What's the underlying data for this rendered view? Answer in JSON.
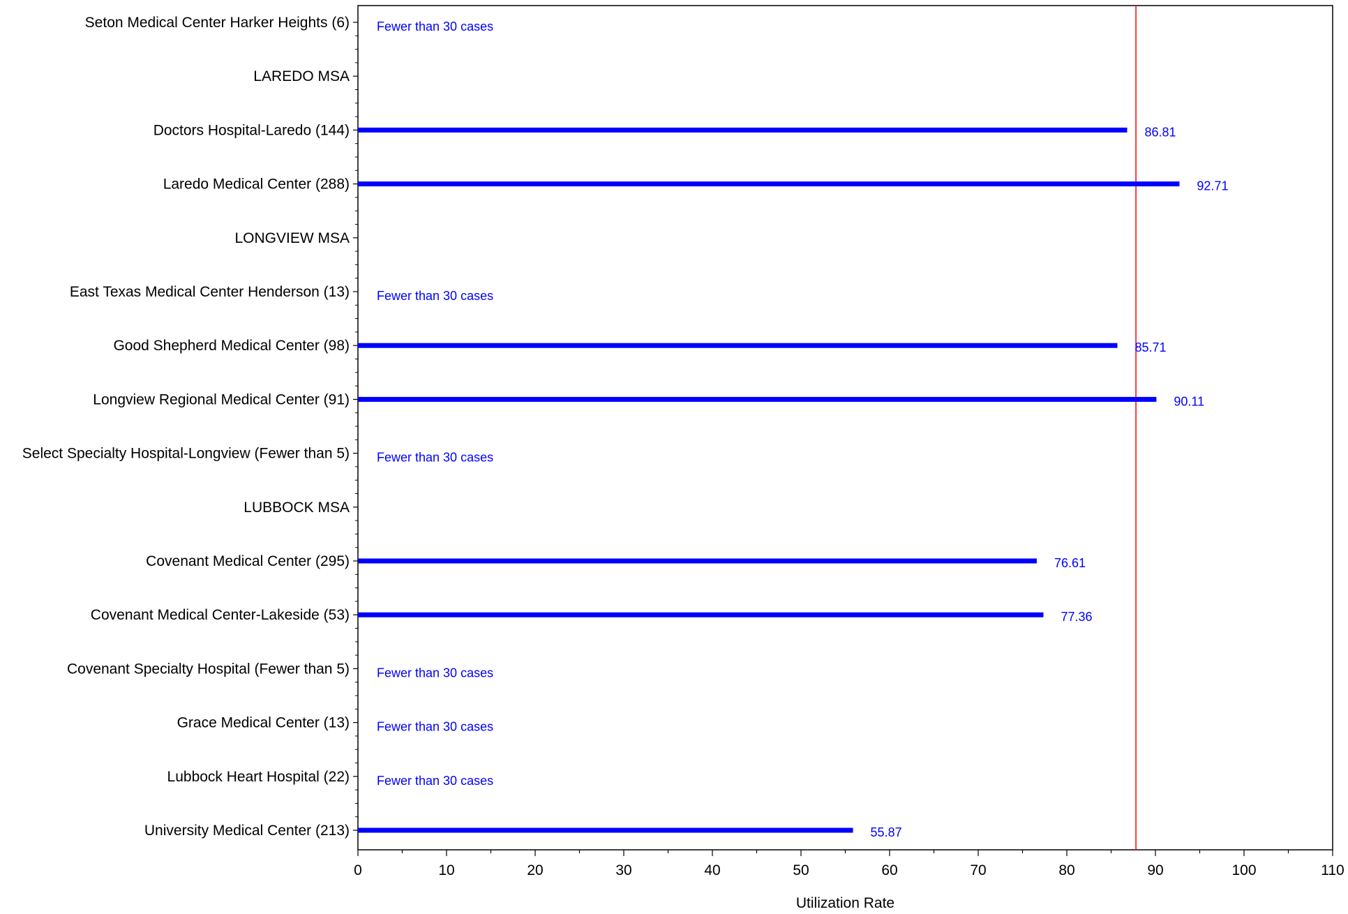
{
  "chart_data": {
    "type": "bar",
    "orientation": "horizontal",
    "xlabel": "Utilization Rate",
    "ylabel": "",
    "xlim": [
      0,
      110
    ],
    "x_ticks": [
      0,
      10,
      20,
      30,
      40,
      50,
      60,
      70,
      80,
      90,
      100,
      110
    ],
    "reference_line": {
      "value": 87.8,
      "color": "#ff0000"
    },
    "bar_color": "#0000ff",
    "label_color": "#0000ff",
    "grid": false,
    "rows": [
      {
        "label": "Seton Medical Center Harker Heights (6)",
        "value": null,
        "data_label": "Fewer than 30 cases"
      },
      {
        "label": "LAREDO MSA",
        "value": null,
        "data_label": ""
      },
      {
        "label": "Doctors Hospital-Laredo (144)",
        "value": 86.81,
        "data_label": "86.81"
      },
      {
        "label": "Laredo Medical Center (288)",
        "value": 92.71,
        "data_label": "92.71"
      },
      {
        "label": "LONGVIEW MSA",
        "value": null,
        "data_label": ""
      },
      {
        "label": "East Texas Medical Center Henderson (13)",
        "value": null,
        "data_label": "Fewer than 30 cases"
      },
      {
        "label": "Good Shepherd Medical Center (98)",
        "value": 85.71,
        "data_label": "85.71"
      },
      {
        "label": "Longview Regional Medical Center (91)",
        "value": 90.11,
        "data_label": "90.11"
      },
      {
        "label": "Select Specialty Hospital-Longview (Fewer than 5)",
        "value": null,
        "data_label": "Fewer than 30 cases"
      },
      {
        "label": "LUBBOCK MSA",
        "value": null,
        "data_label": ""
      },
      {
        "label": "Covenant Medical Center (295)",
        "value": 76.61,
        "data_label": "76.61"
      },
      {
        "label": "Covenant Medical Center-Lakeside (53)",
        "value": 77.36,
        "data_label": "77.36"
      },
      {
        "label": "Covenant Specialty Hospital (Fewer than 5)",
        "value": null,
        "data_label": "Fewer than 30 cases"
      },
      {
        "label": "Grace Medical Center (13)",
        "value": null,
        "data_label": "Fewer than 30 cases"
      },
      {
        "label": "Lubbock Heart Hospital (22)",
        "value": null,
        "data_label": "Fewer than 30 cases"
      },
      {
        "label": "University Medical Center (213)",
        "value": 55.87,
        "data_label": "55.87"
      }
    ]
  }
}
